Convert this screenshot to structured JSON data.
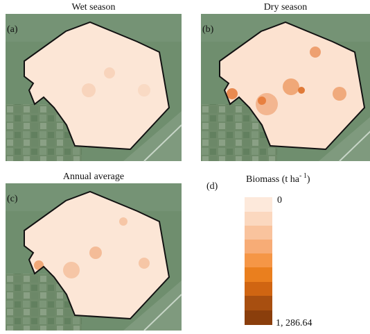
{
  "panels": [
    {
      "label": "(a)",
      "title": "Wet season"
    },
    {
      "label": "(b)",
      "title": "Dry season"
    },
    {
      "label": "(c)",
      "title": "Annual average"
    }
  ],
  "legend": {
    "label": "(d)",
    "title": "Biomass (t ha",
    "title_superscript": "- 1",
    "title_end": ")",
    "min_label": "0",
    "max_label": "1, 286.64"
  }
}
